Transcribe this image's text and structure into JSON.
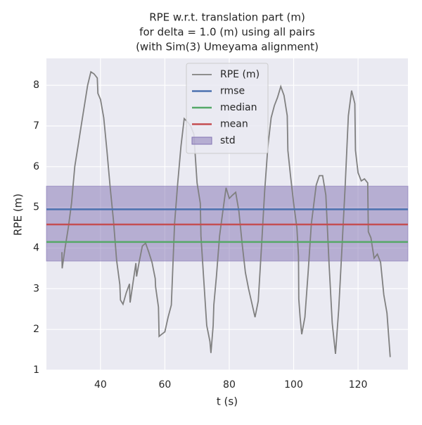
{
  "chart_data": {
    "type": "line",
    "title": [
      "RPE w.r.t. translation part (m)",
      "for delta = 1.0 (m) using all pairs",
      "(with Sim(3) Umeyama alignment)"
    ],
    "x_label": "t (s)",
    "y_label": "RPE (m)",
    "xlim": [
      23.2,
      135.5
    ],
    "ylim": [
      1.0,
      8.66
    ],
    "xticks": [
      40,
      60,
      80,
      100,
      120
    ],
    "yticks": [
      1,
      2,
      3,
      4,
      5,
      6,
      7,
      8
    ],
    "grid": true,
    "legend": "upper center",
    "series": [
      {
        "name": "RPE (m)",
        "color": "#808080",
        "x": [
          28,
          28.1,
          29,
          30,
          31,
          32,
          33,
          34,
          35,
          36,
          37,
          38,
          39,
          39.2,
          40,
          41,
          42,
          43,
          44,
          45,
          46,
          46.2,
          47,
          48,
          49,
          49.2,
          50,
          51,
          51.2,
          52,
          53,
          54,
          55,
          56,
          57,
          57.1,
          58,
          58.2,
          59,
          60,
          61,
          62,
          63,
          64,
          65,
          66,
          67,
          68,
          69,
          70,
          71,
          71.2,
          72,
          73,
          74,
          74.3,
          75,
          75.2,
          76,
          77,
          78,
          79,
          80,
          81,
          82,
          83,
          84,
          85,
          86,
          87,
          88,
          89,
          90,
          91,
          92,
          93,
          94,
          95,
          96,
          97,
          98,
          98.2,
          99,
          100,
          101,
          101.5,
          101.6,
          102,
          102.5,
          103.5,
          104.5,
          105.5,
          107,
          108,
          109,
          110,
          111,
          112,
          113,
          114,
          115,
          116,
          117,
          118,
          119,
          119.2,
          120,
          121,
          122,
          123,
          123.2,
          124,
          125,
          126,
          127,
          128,
          129,
          130
        ],
        "values": [
          3.9,
          3.5,
          4.0,
          4.5,
          5.1,
          6.0,
          6.5,
          7.0,
          7.5,
          8.0,
          8.33,
          8.28,
          8.18,
          7.8,
          7.65,
          7.2,
          6.4,
          5.5,
          4.7,
          3.7,
          3.1,
          2.72,
          2.62,
          2.9,
          3.12,
          2.66,
          3.1,
          3.63,
          3.3,
          3.65,
          4.05,
          4.12,
          3.9,
          3.65,
          3.25,
          3.05,
          2.55,
          1.83,
          1.88,
          1.94,
          2.3,
          2.6,
          4.6,
          5.6,
          6.5,
          7.18,
          7.1,
          7.0,
          6.8,
          5.6,
          5.1,
          4.3,
          3.3,
          2.1,
          1.7,
          1.42,
          2.1,
          2.6,
          3.3,
          4.3,
          4.9,
          5.48,
          5.22,
          5.3,
          5.37,
          4.9,
          4.1,
          3.4,
          3.0,
          2.65,
          2.3,
          2.7,
          4.0,
          5.4,
          6.5,
          7.2,
          7.5,
          7.7,
          7.97,
          7.75,
          7.25,
          6.4,
          5.8,
          5.1,
          4.5,
          3.8,
          2.75,
          2.3,
          1.88,
          2.3,
          3.4,
          4.6,
          5.55,
          5.78,
          5.78,
          5.3,
          3.6,
          2.15,
          1.4,
          2.5,
          4.0,
          5.5,
          7.25,
          7.87,
          7.55,
          6.4,
          5.85,
          5.65,
          5.7,
          5.6,
          4.4,
          4.25,
          3.75,
          3.85,
          3.65,
          2.85,
          2.4,
          1.32
        ]
      }
    ],
    "hlines": [
      {
        "name": "rmse",
        "color": "#4c72b0",
        "value": 4.95
      },
      {
        "name": "median",
        "color": "#55a868",
        "value": 4.15
      },
      {
        "name": "mean",
        "color": "#c44e52",
        "value": 4.58
      }
    ],
    "band": {
      "name": "std",
      "color": "#8172b2",
      "values": [
        3.68,
        5.52
      ]
    }
  }
}
